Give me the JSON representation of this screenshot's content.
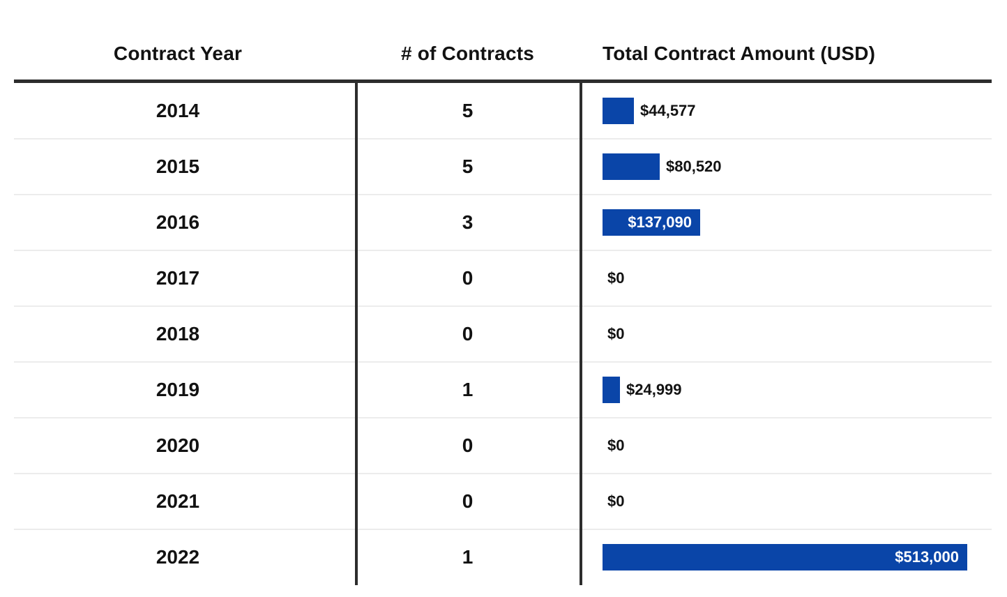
{
  "table": {
    "columns": [
      {
        "label": "Contract Year"
      },
      {
        "label": "# of Contracts"
      },
      {
        "label": "Total Contract Amount (USD)"
      }
    ],
    "rows": [
      {
        "year": "2014",
        "contracts": "5",
        "amount": 44577,
        "amount_label": "$44,577"
      },
      {
        "year": "2015",
        "contracts": "5",
        "amount": 80520,
        "amount_label": "$80,520"
      },
      {
        "year": "2016",
        "contracts": "3",
        "amount": 137090,
        "amount_label": "$137,090"
      },
      {
        "year": "2017",
        "contracts": "0",
        "amount": 0,
        "amount_label": "$0"
      },
      {
        "year": "2018",
        "contracts": "0",
        "amount": 0,
        "amount_label": "$0"
      },
      {
        "year": "2019",
        "contracts": "1",
        "amount": 24999,
        "amount_label": "$24,999"
      },
      {
        "year": "2020",
        "contracts": "0",
        "amount": 0,
        "amount_label": "$0"
      },
      {
        "year": "2021",
        "contracts": "0",
        "amount": 0,
        "amount_label": "$0"
      },
      {
        "year": "2022",
        "contracts": "1",
        "amount": 513000,
        "amount_label": "$513,000"
      }
    ]
  },
  "chart_data": {
    "type": "bar",
    "orientation": "horizontal",
    "title": "Total Contract Amount (USD)",
    "categories": [
      "2014",
      "2015",
      "2016",
      "2017",
      "2018",
      "2019",
      "2020",
      "2021",
      "2022"
    ],
    "series": [
      {
        "name": "# of Contracts",
        "values": [
          5,
          5,
          3,
          0,
          0,
          1,
          0,
          0,
          1
        ]
      },
      {
        "name": "Total Contract Amount (USD)",
        "values": [
          44577,
          80520,
          137090,
          0,
          0,
          24999,
          0,
          0,
          513000
        ]
      }
    ],
    "value_labels": [
      "$44,577",
      "$80,520",
      "$137,090",
      "$0",
      "$0",
      "$24,999",
      "$0",
      "$0",
      "$513,000"
    ],
    "xlim": [
      0,
      513000
    ],
    "grid": false,
    "legend": "none",
    "bar_labels_inside_when_wide": true
  },
  "colors": {
    "bar_blue": "#0a45a8",
    "rule_dark": "#2d2d2d",
    "separator_light": "#ececec",
    "text": "#121212",
    "bar_label_inside": "#ffffff"
  }
}
